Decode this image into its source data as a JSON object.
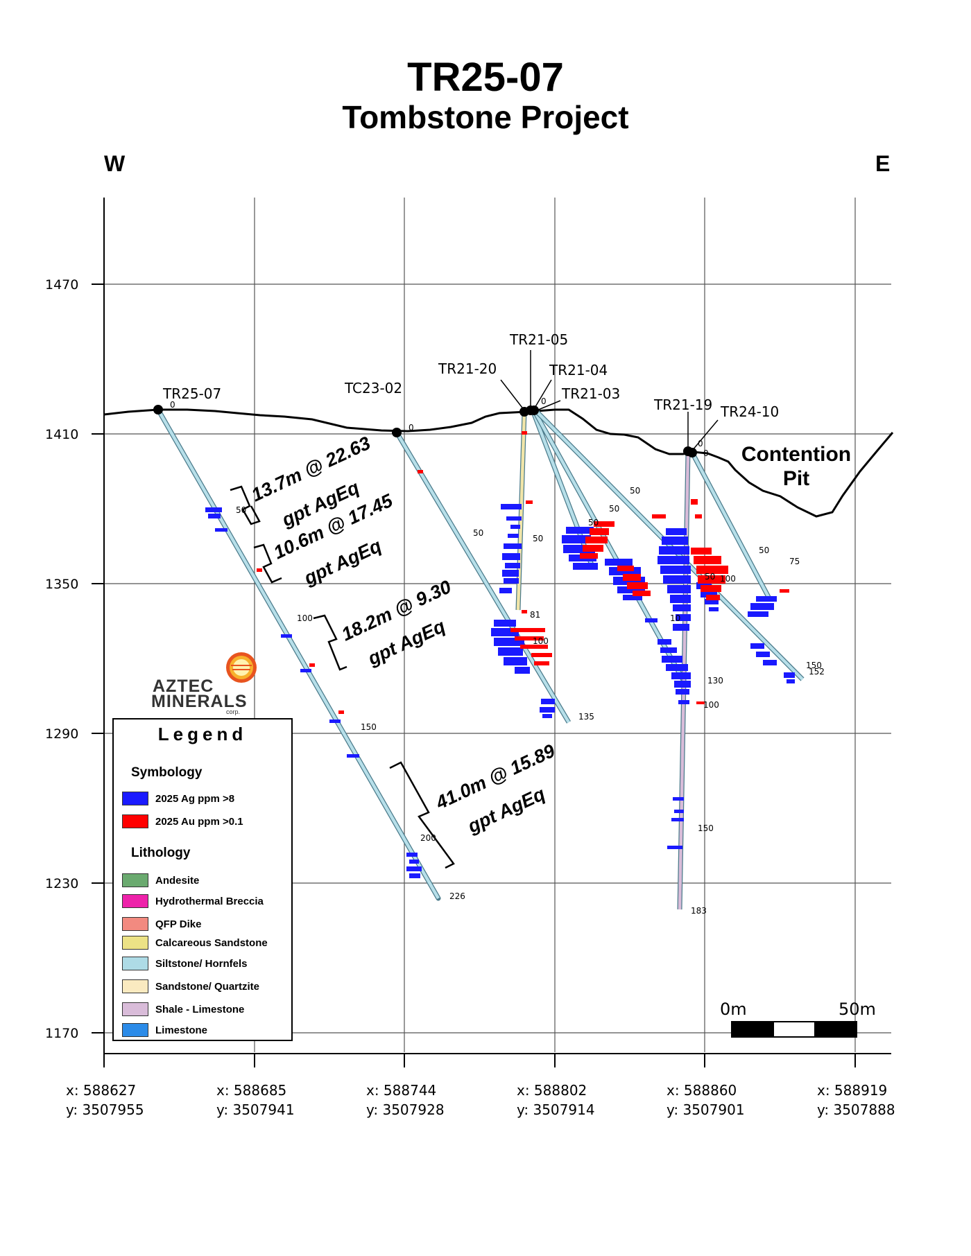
{
  "title": "TR25-07",
  "subtitle": "Tombstone Project",
  "direction": {
    "west": "W",
    "east": "E"
  },
  "elevation_labels": [
    "1470",
    "1410",
    "1350",
    "1290",
    "1230",
    "1170"
  ],
  "coordinates": [
    {
      "x": "x:  588627",
      "y": "y:  3507955"
    },
    {
      "x": "x:  588685",
      "y": "y:  3507941"
    },
    {
      "x": "x:  588744",
      "y": "y:  3507928"
    },
    {
      "x": "x:  588802",
      "y": "y:  3507914"
    },
    {
      "x": "x:  588860",
      "y": "y:  3507901"
    },
    {
      "x": "x:  588919",
      "y": "y:  3507888"
    }
  ],
  "holes": {
    "tr25_07": "TR25-07",
    "tc23_02": "TC23-02",
    "tr21_20": "TR21-20",
    "tr21_05": "TR21-05",
    "tr21_04": "TR21-04",
    "tr21_03": "TR21-03",
    "tr21_19": "TR21-19",
    "tr24_10": "TR24-10"
  },
  "depth_marks": {
    "m0": "0",
    "m50": "50",
    "m75": "75",
    "m81": "81",
    "m100": "100",
    "m130": "130",
    "m135": "135",
    "m150": "150",
    "m152": "152",
    "m183": "183",
    "m200": "200",
    "m226": "226",
    "m10x": "10"
  },
  "intercepts": [
    {
      "line1": "13.7m @ 22.63",
      "line2": "gpt  AgEq"
    },
    {
      "line1": "10.6m @ 17.45",
      "line2": "gpt  AgEq"
    },
    {
      "line1": "18.2m @ 9.30",
      "line2": "gpt  AgEq"
    },
    {
      "line1": "41.0m @ 15.89",
      "line2": "gpt  AgEq"
    }
  ],
  "pit_label": {
    "line1": "Contention",
    "line2": "Pit"
  },
  "logo": {
    "line1": "AZTEC",
    "line2": "MINERALS",
    "line3": "corp."
  },
  "legend": {
    "title": "Legend",
    "symbology_heading": "Symbology",
    "symbology": [
      {
        "label": "2025 Ag ppm >8",
        "color": "#1a1aff"
      },
      {
        "label": "2025 Au ppm >0.1",
        "color": "#ff0000"
      }
    ],
    "lithology_heading": "Lithology",
    "lithology": [
      {
        "label": "Andesite",
        "color": "#6aaa6f"
      },
      {
        "label": "Hydrothermal Breccia",
        "color": "#ee22aa"
      },
      {
        "label": "QFP Dike",
        "color": "#f28a80"
      },
      {
        "label": "Calcareous Sandstone",
        "color": "#ece286"
      },
      {
        "label": "Siltstone/ Hornfels",
        "color": "#aedbe6"
      },
      {
        "label": "Sandstone/ Quartzite",
        "color": "#faeac0"
      },
      {
        "label": "Shale - Limestone",
        "color": "#d9bcd9"
      },
      {
        "label": "Limestone",
        "color": "#2b8be8"
      }
    ]
  },
  "scale_bar": {
    "left": "0m",
    "right": "50m"
  },
  "colors": {
    "ag": "#1a1aff",
    "au": "#ff0000",
    "grid": "#555555"
  }
}
